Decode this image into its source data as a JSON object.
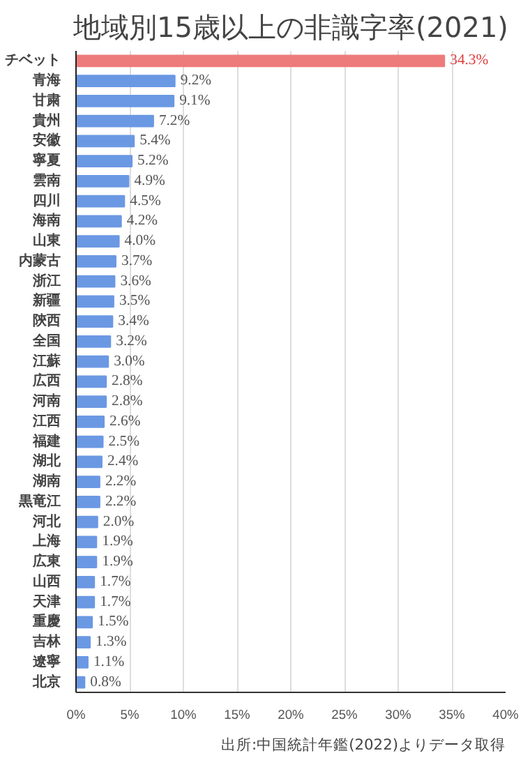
{
  "chart_data": {
    "type": "bar",
    "orientation": "horizontal",
    "title": "地域別15歳以上の非識字率(2021)",
    "categories": [
      "チベット",
      "青海",
      "甘粛",
      "貴州",
      "安徽",
      "寧夏",
      "雲南",
      "四川",
      "海南",
      "山東",
      "内蒙古",
      "浙江",
      "新疆",
      "陝西",
      "全国",
      "江蘇",
      "広西",
      "河南",
      "江西",
      "福建",
      "湖北",
      "湖南",
      "黒竜江",
      "河北",
      "上海",
      "広東",
      "山西",
      "天津",
      "重慶",
      "吉林",
      "遼寧",
      "北京"
    ],
    "values": [
      34.3,
      9.2,
      9.1,
      7.2,
      5.4,
      5.2,
      4.9,
      4.5,
      4.2,
      4.0,
      3.7,
      3.6,
      3.5,
      3.4,
      3.2,
      3.0,
      2.8,
      2.8,
      2.6,
      2.5,
      2.4,
      2.2,
      2.2,
      2.0,
      1.9,
      1.9,
      1.7,
      1.7,
      1.5,
      1.3,
      1.1,
      0.8
    ],
    "value_labels": [
      "34.3%",
      "9.2%",
      "9.1%",
      "7.2%",
      "5.4%",
      "5.2%",
      "4.9%",
      "4.5%",
      "4.2%",
      "4.0%",
      "3.7%",
      "3.6%",
      "3.5%",
      "3.4%",
      "3.2%",
      "3.0%",
      "2.8%",
      "2.8%",
      "2.6%",
      "2.5%",
      "2.4%",
      "2.2%",
      "2.2%",
      "2.0%",
      "1.9%",
      "1.9%",
      "1.7%",
      "1.7%",
      "1.5%",
      "1.3%",
      "1.1%",
      "0.8%"
    ],
    "colors": [
      "#ee7b7b",
      "#6b98e3",
      "#6b98e3",
      "#6b98e3",
      "#6b98e3",
      "#6b98e3",
      "#6b98e3",
      "#6b98e3",
      "#6b98e3",
      "#6b98e3",
      "#6b98e3",
      "#6b98e3",
      "#6b98e3",
      "#6b98e3",
      "#6b98e3",
      "#6b98e3",
      "#6b98e3",
      "#6b98e3",
      "#6b98e3",
      "#6b98e3",
      "#6b98e3",
      "#6b98e3",
      "#6b98e3",
      "#6b98e3",
      "#6b98e3",
      "#6b98e3",
      "#6b98e3",
      "#6b98e3",
      "#6b98e3",
      "#6b98e3",
      "#6b98e3",
      "#6b98e3"
    ],
    "xlim": [
      0,
      40
    ],
    "xticks": [
      {
        "value": 0,
        "label": "0%"
      },
      {
        "value": 5,
        "label": "5%"
      },
      {
        "value": 10,
        "label": "10%"
      },
      {
        "value": 15,
        "label": "15%"
      },
      {
        "value": 20,
        "label": "20%"
      },
      {
        "value": 25,
        "label": "25%"
      },
      {
        "value": 30,
        "label": "30%"
      },
      {
        "value": 35,
        "label": "35%"
      },
      {
        "value": 40,
        "label": "40%"
      }
    ],
    "grid": "x",
    "annotations": [
      "出所:中国統計年鑑(2022)よりデータ取得"
    ]
  }
}
